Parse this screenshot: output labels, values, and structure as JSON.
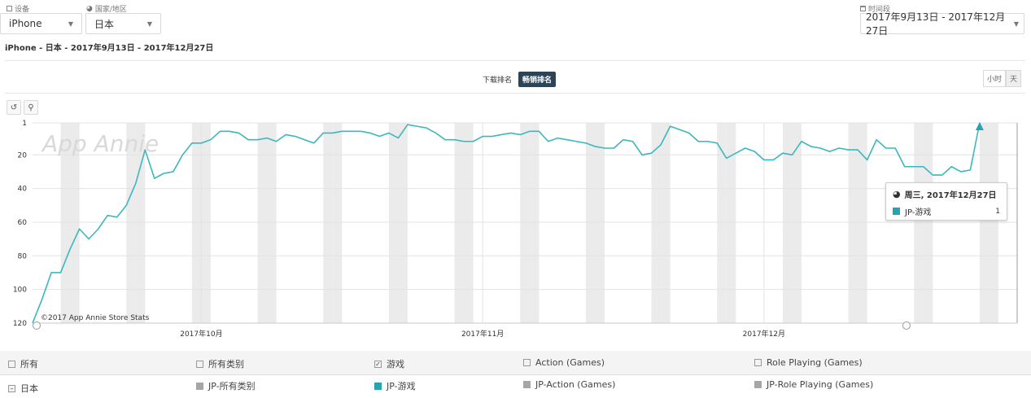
{
  "filters": {
    "device": {
      "label": "设备",
      "value": "iPhone"
    },
    "country": {
      "label": "国家/地区",
      "value": "日本"
    },
    "period": {
      "label": "时间段",
      "value": "2017年9月13日 - 2017年12月27日"
    }
  },
  "subtitle": "iPhone - 日本 - 2017年9月13日 - 2017年12月27日",
  "rank_toggle": {
    "downloads": "下载排名",
    "grossing": "畅销排名",
    "active": "grossing"
  },
  "unit_toggle": {
    "hour": "小时",
    "day": "天",
    "active": "day"
  },
  "watermark": "App Annie",
  "copyright": "©2017 App Annie Store Stats",
  "tooltip": {
    "date": "周三, 2017年12月27日",
    "series": "JP-游戏",
    "value": "1"
  },
  "legend": {
    "row1": [
      {
        "label": "所有",
        "checked": false
      },
      {
        "label": "所有类别",
        "checked": false
      },
      {
        "label": "游戏",
        "checked": true
      },
      {
        "label": "Action (Games)",
        "checked": false
      },
      {
        "label": "Role Playing (Games)",
        "checked": false
      }
    ],
    "row2": [
      {
        "label": "日本",
        "kind": "collapse"
      },
      {
        "label": "JP-所有类别",
        "color": "#a6a6a6"
      },
      {
        "label": "JP-游戏",
        "color": "#26a4b2"
      },
      {
        "label": "JP-Action (Games)",
        "color": "#a6a6a6"
      },
      {
        "label": "JP-Role Playing (Games)",
        "color": "#a6a6a6"
      }
    ]
  },
  "colors": {
    "line": "#3cb7bd",
    "weekend": "#ebebeb",
    "grid": "#e3e3e3"
  },
  "chart_data": {
    "type": "line",
    "xlabel": "",
    "ylabel": "",
    "y_ticks": [
      1,
      20,
      40,
      60,
      80,
      100,
      120
    ],
    "ylim": [
      120,
      1
    ],
    "y_reversed": true,
    "x_ticks": [
      {
        "day": 18,
        "label": "2017年10月"
      },
      {
        "day": 48,
        "label": "2017年11月"
      },
      {
        "day": 78,
        "label": "2017年12月"
      }
    ],
    "x_range": [
      0,
      105
    ],
    "weekend_days": [
      3,
      4,
      10,
      11,
      17,
      18,
      24,
      25,
      31,
      32,
      38,
      39,
      45,
      46,
      52,
      53,
      59,
      60,
      66,
      67,
      73,
      74,
      80,
      81,
      87,
      88,
      94,
      95,
      101,
      102
    ],
    "series": [
      {
        "name": "JP-游戏",
        "values": [
          120,
          106,
          90,
          90,
          76,
          64,
          70,
          64,
          56,
          57,
          50,
          37,
          17,
          34,
          31,
          30,
          20,
          13,
          13,
          11,
          6,
          6,
          7,
          11,
          11,
          10,
          12,
          8,
          9,
          11,
          13,
          7,
          7,
          6,
          6,
          6,
          7,
          9,
          7,
          10,
          2,
          3,
          4,
          7,
          11,
          11,
          12,
          12,
          9,
          9,
          8,
          7,
          8,
          6,
          6,
          12,
          10,
          11,
          12,
          13,
          15,
          16,
          16,
          11,
          12,
          20,
          19,
          14,
          3,
          5,
          7,
          12,
          12,
          13,
          22,
          19,
          16,
          18,
          23,
          23,
          19,
          20,
          12,
          15,
          16,
          18,
          16,
          17,
          17,
          23,
          11,
          16,
          16,
          27,
          27,
          27,
          32,
          32,
          27,
          30,
          29,
          1
        ]
      }
    ]
  }
}
